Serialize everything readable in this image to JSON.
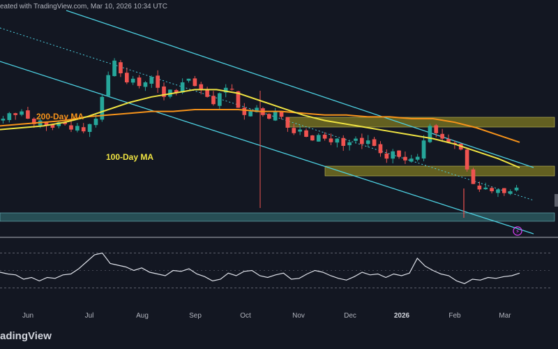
{
  "header": {
    "text": "eated with TradingView.com, Mar 10, 2026 10:34 UTC"
  },
  "brand": {
    "text": "adingView"
  },
  "colors": {
    "background": "#131722",
    "up": "#26a69a",
    "down": "#ef5350",
    "ma100": "#f0e442",
    "ma200": "#f7931a",
    "channel": "#4dd0e1",
    "zone_fill": "#7f7a22",
    "support_fill": "#2d5c63",
    "rsi": "#e0e3eb",
    "wick_spike": "#ef5350"
  },
  "labels": {
    "ma200": "200-Day MA",
    "ma100": "100-Day MA"
  },
  "chart_data": {
    "type": "line",
    "title": "",
    "xlabel": "",
    "ylabel": "",
    "x_ticks": [
      "Jun",
      "Jul",
      "Aug",
      "Sep",
      "Oct",
      "Nov",
      "Dec",
      "2026",
      "Feb",
      "Mar"
    ],
    "bold_ticks": [
      "2026"
    ],
    "series": [
      {
        "name": "",
        "kind": "price",
        "values": [
          50,
          53,
          52,
          54,
          50,
          47,
          49,
          46,
          45,
          48,
          47,
          44,
          46,
          43,
          47,
          50,
          62,
          74,
          82,
          75,
          70,
          72,
          68,
          70,
          73,
          67,
          62,
          66,
          64,
          70,
          72,
          68,
          66,
          62,
          58,
          64,
          67,
          66,
          56,
          52,
          54,
          56,
          52,
          50,
          54,
          51,
          45,
          42,
          44,
          40,
          38,
          41,
          39,
          37,
          39,
          35,
          37,
          39,
          36,
          38,
          35,
          31,
          28,
          32,
          29,
          27,
          28,
          29,
          38,
          46,
          42,
          39,
          37,
          36,
          33,
          22,
          14,
          11,
          12,
          10,
          11,
          9,
          10,
          12
        ]
      },
      {
        "name": "100-Day MA",
        "kind": "ma",
        "values": [
          44,
          45,
          46,
          48,
          51,
          55,
          59,
          62,
          64,
          66,
          66,
          64,
          60,
          56,
          52,
          49,
          47,
          45,
          43,
          41,
          39,
          36,
          32,
          28,
          23
        ]
      },
      {
        "name": "200-Day MA",
        "kind": "ma",
        "values": [
          46,
          47,
          48,
          49,
          51,
          52,
          53,
          54,
          54,
          55,
          55,
          55,
          54,
          54,
          53,
          52,
          52,
          51,
          51,
          50,
          50,
          48,
          45,
          41,
          37
        ]
      },
      {
        "name": "",
        "kind": "rsi",
        "values": [
          48,
          46,
          45,
          40,
          42,
          38,
          42,
          41,
          45,
          46,
          52,
          60,
          68,
          70,
          58,
          56,
          54,
          50,
          53,
          48,
          46,
          44,
          50,
          49,
          52,
          46,
          43,
          38,
          40,
          47,
          44,
          49,
          50,
          44,
          42,
          45,
          47,
          40,
          41,
          46,
          50,
          48,
          44,
          41,
          39,
          43,
          48,
          45,
          46,
          42,
          46,
          44,
          47,
          64,
          55,
          50,
          46,
          44,
          38,
          35,
          40,
          39,
          42,
          41,
          43,
          44,
          47
        ]
      }
    ],
    "zones": [
      "resistance-1",
      "resistance-2",
      "support"
    ],
    "grid": false,
    "legend": "none"
  }
}
